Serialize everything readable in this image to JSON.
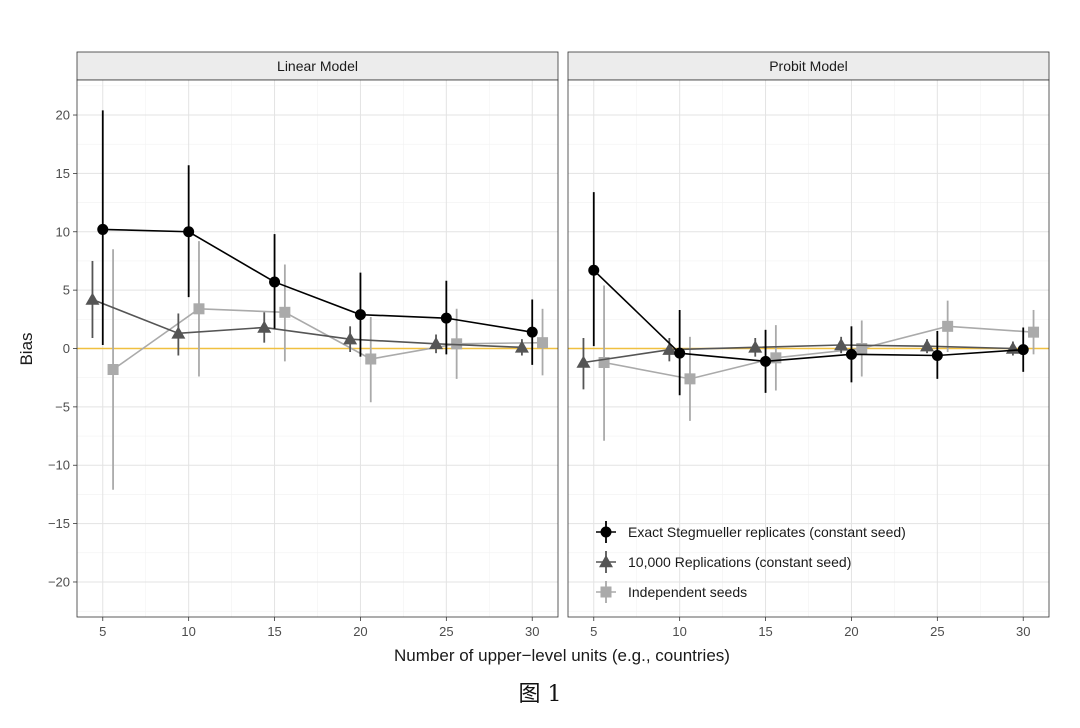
{
  "figure_caption": "图 1",
  "chart_data": {
    "type": "line",
    "xlabel": "Number of upper−level units (e.g., countries)",
    "ylabel": "Bias",
    "xlim": [
      3.5,
      31.5
    ],
    "ylim": [
      -23,
      23
    ],
    "x_ticks": [
      5,
      10,
      15,
      20,
      25,
      30
    ],
    "y_ticks": [
      -20,
      -15,
      -10,
      -5,
      0,
      5,
      10,
      15,
      20
    ],
    "reference_line": {
      "y": 0,
      "color": "#f0c040"
    },
    "grid": true,
    "legend_position": "bottom-right of right panel",
    "legend": [
      "Exact Stegmueller replicates (constant seed)",
      "10,000 Replications (constant seed)",
      "Independent seeds"
    ],
    "series_style": [
      {
        "color": "#000000",
        "shape": "circle",
        "dodge": 0
      },
      {
        "color": "#555555",
        "shape": "triangle",
        "dodge": -0.6
      },
      {
        "color": "#aaaaaa",
        "shape": "square",
        "dodge": 0.6
      }
    ],
    "panels": [
      {
        "title": "Linear Model",
        "series": [
          {
            "name": "Exact Stegmueller replicates (constant seed)",
            "points": [
              {
                "x": 5,
                "y": 10.2,
                "lo": 0.3,
                "hi": 20.4
              },
              {
                "x": 10,
                "y": 10.0,
                "lo": 4.4,
                "hi": 15.7
              },
              {
                "x": 15,
                "y": 5.7,
                "lo": 1.7,
                "hi": 9.8
              },
              {
                "x": 20,
                "y": 2.9,
                "lo": -0.7,
                "hi": 6.5
              },
              {
                "x": 25,
                "y": 2.6,
                "lo": -0.5,
                "hi": 5.8
              },
              {
                "x": 30,
                "y": 1.4,
                "lo": -1.4,
                "hi": 4.2
              }
            ]
          },
          {
            "name": "10,000 Replications (constant seed)",
            "points": [
              {
                "x": 5,
                "y": 4.2,
                "lo": 0.9,
                "hi": 7.5
              },
              {
                "x": 10,
                "y": 1.3,
                "lo": -0.6,
                "hi": 3.0
              },
              {
                "x": 15,
                "y": 1.8,
                "lo": 0.5,
                "hi": 3.1
              },
              {
                "x": 20,
                "y": 0.8,
                "lo": -0.3,
                "hi": 1.9
              },
              {
                "x": 25,
                "y": 0.4,
                "lo": -0.4,
                "hi": 1.2
              },
              {
                "x": 30,
                "y": 0.1,
                "lo": -0.6,
                "hi": 0.8
              }
            ]
          },
          {
            "name": "Independent seeds",
            "points": [
              {
                "x": 5,
                "y": -1.8,
                "lo": -12.1,
                "hi": 8.5
              },
              {
                "x": 10,
                "y": 3.4,
                "lo": -2.4,
                "hi": 9.2
              },
              {
                "x": 15,
                "y": 3.1,
                "lo": -1.1,
                "hi": 7.2
              },
              {
                "x": 20,
                "y": -0.9,
                "lo": -4.6,
                "hi": 2.7
              },
              {
                "x": 25,
                "y": 0.4,
                "lo": -2.6,
                "hi": 3.4
              },
              {
                "x": 30,
                "y": 0.5,
                "lo": -2.3,
                "hi": 3.4
              }
            ]
          }
        ]
      },
      {
        "title": "Probit Model",
        "series": [
          {
            "name": "Exact Stegmueller replicates (constant seed)",
            "points": [
              {
                "x": 5,
                "y": 6.7,
                "lo": 0.2,
                "hi": 13.4
              },
              {
                "x": 10,
                "y": -0.4,
                "lo": -4.0,
                "hi": 3.3
              },
              {
                "x": 15,
                "y": -1.1,
                "lo": -3.8,
                "hi": 1.6
              },
              {
                "x": 20,
                "y": -0.5,
                "lo": -2.9,
                "hi": 1.9
              },
              {
                "x": 25,
                "y": -0.6,
                "lo": -2.6,
                "hi": 1.5
              },
              {
                "x": 30,
                "y": -0.1,
                "lo": -2.0,
                "hi": 1.8
              }
            ]
          },
          {
            "name": "10,000 Replications (constant seed)",
            "points": [
              {
                "x": 5,
                "y": -1.2,
                "lo": -3.5,
                "hi": 0.9
              },
              {
                "x": 10,
                "y": -0.1,
                "lo": -1.1,
                "hi": 0.9
              },
              {
                "x": 15,
                "y": 0.1,
                "lo": -0.7,
                "hi": 0.9
              },
              {
                "x": 20,
                "y": 0.3,
                "lo": -0.4,
                "hi": 1.0
              },
              {
                "x": 25,
                "y": 0.2,
                "lo": -0.4,
                "hi": 0.8
              },
              {
                "x": 30,
                "y": 0.0,
                "lo": -0.6,
                "hi": 0.6
              }
            ]
          },
          {
            "name": "Independent seeds",
            "points": [
              {
                "x": 5,
                "y": -1.2,
                "lo": -7.9,
                "hi": 5.4
              },
              {
                "x": 10,
                "y": -2.6,
                "lo": -6.2,
                "hi": 1.0
              },
              {
                "x": 15,
                "y": -0.8,
                "lo": -3.6,
                "hi": 2.0
              },
              {
                "x": 20,
                "y": 0.0,
                "lo": -2.4,
                "hi": 2.4
              },
              {
                "x": 25,
                "y": 1.9,
                "lo": -0.3,
                "hi": 4.1
              },
              {
                "x": 30,
                "y": 1.4,
                "lo": -0.5,
                "hi": 3.3
              }
            ]
          }
        ]
      }
    ]
  }
}
